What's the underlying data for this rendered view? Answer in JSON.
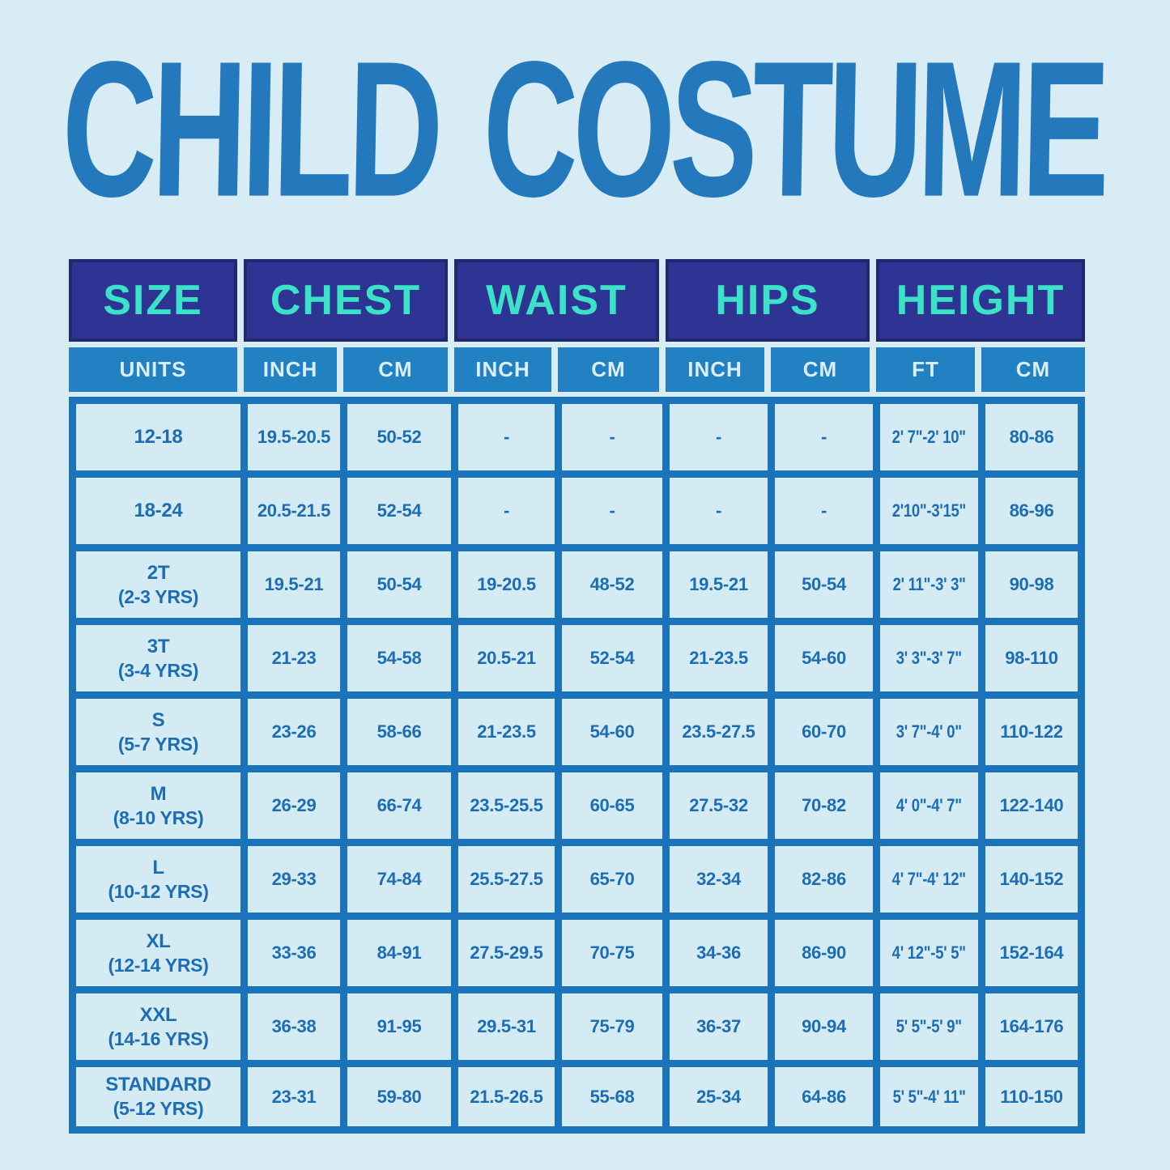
{
  "title": "CHILD COSTUME",
  "colors": {
    "page_bg": "#d7ecf4",
    "title_blue": "#2478bc",
    "header_bg": "#2e3494",
    "header_border": "#23286e",
    "header_text": "#3ce2c8",
    "units_bg": "#2281c3",
    "units_text": "#dbeef8",
    "grid_blue": "#1b73b9",
    "cell_bg": "#d5ebf4",
    "data_text": "#1c6db3"
  },
  "table": {
    "group_headers": [
      "SIZE",
      "CHEST",
      "WAIST",
      "HIPS",
      "HEIGHT"
    ],
    "unit_headers": [
      "UNITS",
      "INCH",
      "CM",
      "INCH",
      "CM",
      "INCH",
      "CM",
      "FT",
      "CM"
    ],
    "rows": [
      {
        "size": "12-18",
        "age": "",
        "values": [
          "19.5-20.5",
          "50-52",
          "-",
          "-",
          "-",
          "-",
          "2' 7\"-2' 10\"",
          "80-86"
        ]
      },
      {
        "size": "18-24",
        "age": "",
        "values": [
          "20.5-21.5",
          "52-54",
          "-",
          "-",
          "-",
          "-",
          "2'10\"-3'15\"",
          "86-96"
        ]
      },
      {
        "size": "2T",
        "age": "(2-3 YRS)",
        "values": [
          "19.5-21",
          "50-54",
          "19-20.5",
          "48-52",
          "19.5-21",
          "50-54",
          "2' 11\"-3' 3\"",
          "90-98"
        ]
      },
      {
        "size": "3T",
        "age": "(3-4 YRS)",
        "values": [
          "21-23",
          "54-58",
          "20.5-21",
          "52-54",
          "21-23.5",
          "54-60",
          "3' 3\"-3' 7\"",
          "98-110"
        ]
      },
      {
        "size": "S",
        "age": "(5-7 YRS)",
        "values": [
          "23-26",
          "58-66",
          "21-23.5",
          "54-60",
          "23.5-27.5",
          "60-70",
          "3' 7\"-4' 0\"",
          "110-122"
        ]
      },
      {
        "size": "M",
        "age": "(8-10 YRS)",
        "values": [
          "26-29",
          "66-74",
          "23.5-25.5",
          "60-65",
          "27.5-32",
          "70-82",
          "4' 0\"-4' 7\"",
          "122-140"
        ]
      },
      {
        "size": "L",
        "age": "(10-12 YRS)",
        "values": [
          "29-33",
          "74-84",
          "25.5-27.5",
          "65-70",
          "32-34",
          "82-86",
          "4' 7\"-4' 12\"",
          "140-152"
        ]
      },
      {
        "size": "XL",
        "age": "(12-14 YRS)",
        "values": [
          "33-36",
          "84-91",
          "27.5-29.5",
          "70-75",
          "34-36",
          "86-90",
          "4' 12\"-5' 5\"",
          "152-164"
        ]
      },
      {
        "size": "XXL",
        "age": "(14-16 YRS)",
        "values": [
          "36-38",
          "91-95",
          "29.5-31",
          "75-79",
          "36-37",
          "90-94",
          "5' 5\"-5' 9\"",
          "164-176"
        ]
      },
      {
        "size": "STANDARD",
        "age": "(5-12 YRS)",
        "values": [
          "23-31",
          "59-80",
          "21.5-26.5",
          "55-68",
          "25-34",
          "64-86",
          "5' 5\"-4' 11\"",
          "110-150"
        ]
      }
    ]
  }
}
